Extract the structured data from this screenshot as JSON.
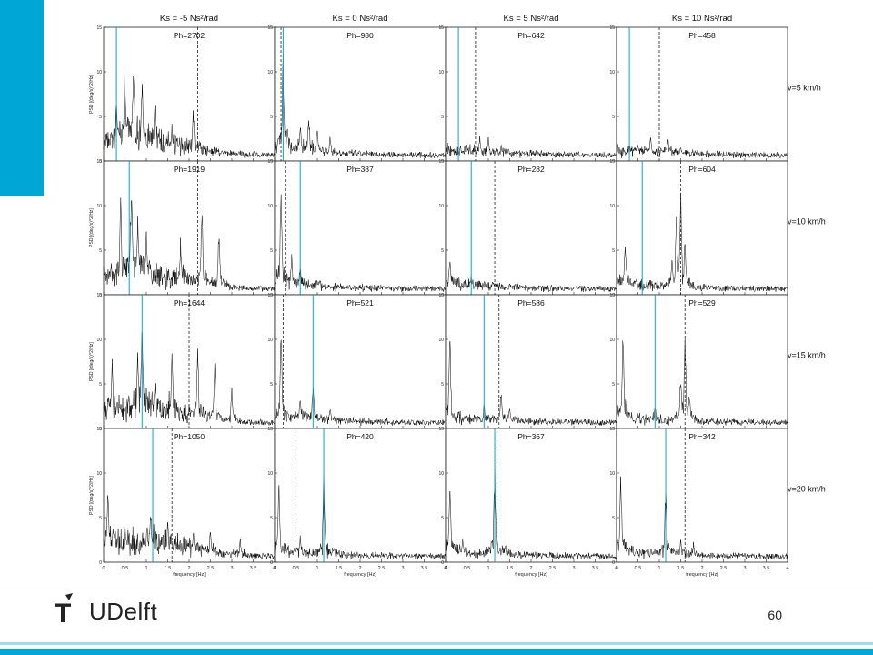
{
  "slide": {
    "page_number": "60"
  },
  "logo": {
    "mark": "T",
    "text": "UDelft"
  },
  "colors": {
    "accent": "#00a6d6",
    "trace": "#000000",
    "marker_line": "#00a6d6"
  },
  "chart_data": {
    "type": "line",
    "rows": [
      "v=5 km/h",
      "v=10 km/h",
      "v=15 km/h",
      "v=20 km/h"
    ],
    "columns": [
      "Ks = -5 Ns²/rad",
      "Ks = 0 Ns²/rad",
      "Ks = 5 Ns²/rad",
      "Ks = 10 Ns²/rad"
    ],
    "ylabels": [
      "PSD [(deg/s)^2/Hz]",
      "PSD [(deg/s)^2/Hz]",
      "PSD [(deg/s)^2/Hz]",
      "PSD [(deg/s)^2/Hz]"
    ],
    "xlabel": "frequency [Hz]",
    "xlim": [
      0,
      4
    ],
    "ylim": [
      0,
      15
    ],
    "xticks": [
      "0",
      "0.5",
      "1",
      "1.5",
      "2",
      "2.5",
      "3",
      "3.5",
      "4"
    ],
    "ph_labels": [
      [
        "Ph=2702",
        "Ph=980",
        "Ph=642",
        "Ph=458"
      ],
      [
        "Ph=1919",
        "Ph=387",
        "Ph=282",
        "Ph=604"
      ],
      [
        "Ph=1644",
        "Ph=521",
        "Ph=586",
        "Ph=529"
      ],
      [
        "Ph=1050",
        "Ph=420",
        "Ph=367",
        "Ph=342"
      ]
    ],
    "blue_line_hz": [
      [
        0.3,
        0.2,
        0.3,
        0.3
      ],
      [
        0.6,
        0.6,
        0.6,
        0.6
      ],
      [
        0.9,
        0.9,
        0.9,
        0.9
      ],
      [
        1.15,
        1.15,
        1.15,
        1.15
      ]
    ],
    "dashed_line_hz": [
      [
        2.2,
        0.15,
        0.7,
        1.0
      ],
      [
        2.2,
        0.25,
        1.15,
        1.5
      ],
      [
        2.0,
        0.2,
        1.25,
        1.6
      ],
      [
        1.6,
        0.5,
        1.2,
        1.6
      ]
    ],
    "peaks": [
      [
        [
          0.7,
          13
        ],
        [
          0.5,
          11.5
        ],
        [
          0.9,
          10
        ],
        [
          0.3,
          8
        ],
        [
          1.2,
          7
        ],
        [
          2.1,
          6.5
        ],
        [
          1.6,
          5
        ]
      ],
      [
        [
          0.8,
          6
        ],
        [
          0.6,
          5
        ],
        [
          1.0,
          4.5
        ],
        [
          0.3,
          4
        ],
        [
          1.3,
          3.5
        ],
        [
          0.2,
          13
        ]
      ],
      [
        [
          0.8,
          3
        ],
        [
          1.0,
          3
        ],
        [
          0.5,
          2.2
        ],
        [
          1.3,
          2
        ]
      ],
      [
        [
          0.8,
          3.5
        ],
        [
          1.2,
          3
        ],
        [
          0.5,
          2
        ],
        [
          1.5,
          2
        ]
      ]
    ],
    "peaks_row2": [
      [
        [
          0.65,
          13.5
        ],
        [
          0.4,
          12.5
        ],
        [
          0.8,
          10
        ],
        [
          1.0,
          8
        ],
        [
          2.3,
          11
        ],
        [
          2.7,
          9
        ],
        [
          1.8,
          7
        ]
      ],
      [
        [
          0.15,
          13
        ],
        [
          0.4,
          5
        ],
        [
          0.6,
          4
        ],
        [
          1.0,
          2
        ]
      ],
      [
        [
          0.1,
          5
        ],
        [
          0.6,
          2.5
        ],
        [
          1.1,
          2
        ],
        [
          1.5,
          1.5
        ]
      ],
      [
        [
          1.5,
          11.5
        ],
        [
          1.4,
          9
        ],
        [
          1.6,
          7
        ],
        [
          0.2,
          7
        ],
        [
          1.3,
          5
        ]
      ]
    ],
    "peaks_row3": [
      [
        [
          0.9,
          13
        ],
        [
          0.8,
          11
        ],
        [
          1.6,
          9
        ],
        [
          2.2,
          10
        ],
        [
          2.6,
          9
        ],
        [
          1.2,
          6
        ],
        [
          0.2,
          8
        ],
        [
          3.0,
          5
        ]
      ],
      [
        [
          0.9,
          6
        ],
        [
          0.15,
          12
        ],
        [
          1.3,
          3
        ],
        [
          0.6,
          4
        ]
      ],
      [
        [
          0.1,
          12
        ],
        [
          1.3,
          5
        ],
        [
          0.9,
          3
        ],
        [
          1.5,
          3
        ]
      ],
      [
        [
          1.6,
          10
        ],
        [
          1.5,
          7
        ],
        [
          0.15,
          12
        ],
        [
          1.7,
          5
        ],
        [
          0.9,
          3
        ]
      ]
    ],
    "peaks_row4": [
      [
        [
          0.1,
          10
        ],
        [
          1.1,
          7
        ],
        [
          1.5,
          5
        ],
        [
          2.1,
          4
        ],
        [
          2.5,
          4
        ],
        [
          0.5,
          5
        ],
        [
          3.2,
          3
        ]
      ],
      [
        [
          1.15,
          11
        ],
        [
          0.1,
          10
        ],
        [
          0.6,
          3
        ],
        [
          1.4,
          2
        ]
      ],
      [
        [
          1.15,
          12
        ],
        [
          0.1,
          10
        ],
        [
          0.4,
          3
        ],
        [
          1.4,
          2.5
        ]
      ],
      [
        [
          1.15,
          10
        ],
        [
          0.1,
          11
        ],
        [
          1.5,
          3
        ],
        [
          1.8,
          2.5
        ]
      ]
    ]
  }
}
